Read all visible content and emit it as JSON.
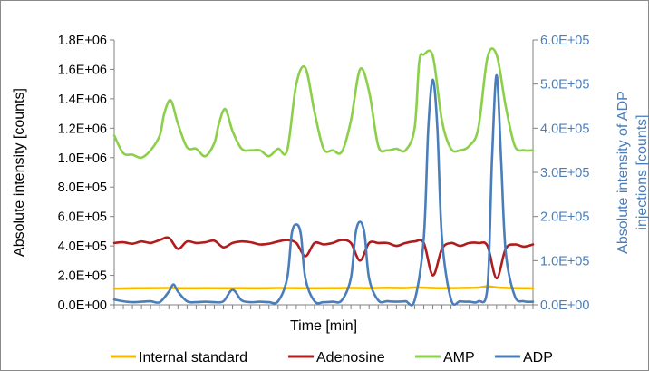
{
  "chart_data": {
    "type": "line",
    "xlabel": "Time [min]",
    "ylabel": "Absolute intensity [counts]",
    "y2label_line1": "Absolute intensity of ADP",
    "y2label_line2": "injections [counts]",
    "x_unit": "min",
    "xlim": [
      0,
      460
    ],
    "ylim": [
      0,
      1800000
    ],
    "y2lim": [
      0,
      600000
    ],
    "yticks": [
      "0.0E+00",
      "2.0E+05",
      "4.0E+05",
      "6.0E+05",
      "8.0E+05",
      "1.0E+06",
      "1.2E+06",
      "1.4E+06",
      "1.6E+06",
      "1.8E+06"
    ],
    "y2ticks": [
      "0.0E+00",
      "1.0E+05",
      "2.0E+05",
      "3.0E+05",
      "4.0E+05",
      "5.0E+05",
      "6.0E+05"
    ],
    "x_minor_tick_count": 46,
    "legend_position": "bottom",
    "grid": false,
    "colors": {
      "internal_standard": "#f5b800",
      "adenosine": "#b01c1c",
      "amp": "#8ccf4a",
      "adp": "#4a7ebb",
      "axis": "#808080",
      "y2text": "#4a7ebb"
    },
    "series": [
      {
        "name": "Internal standard",
        "axis": "left",
        "color": "#f5b800",
        "x": [
          0,
          20,
          40,
          60,
          80,
          100,
          120,
          140,
          160,
          180,
          200,
          220,
          240,
          260,
          280,
          300,
          320,
          330,
          340,
          360,
          380,
          400,
          410,
          420,
          440,
          460
        ],
        "values": [
          110000,
          112000,
          113000,
          114000,
          112000,
          113000,
          112000,
          113000,
          112000,
          114000,
          113000,
          112000,
          113000,
          114000,
          113000,
          115000,
          114000,
          118000,
          116000,
          113000,
          114000,
          117000,
          125000,
          118000,
          113000,
          112000
        ]
      },
      {
        "name": "Adenosine",
        "axis": "left",
        "color": "#b01c1c",
        "x": [
          0,
          10,
          20,
          30,
          40,
          50,
          60,
          70,
          80,
          90,
          100,
          110,
          120,
          130,
          140,
          150,
          160,
          170,
          180,
          190,
          200,
          210,
          220,
          230,
          240,
          250,
          260,
          270,
          280,
          290,
          300,
          310,
          320,
          330,
          340,
          350,
          360,
          370,
          380,
          390,
          400,
          410,
          420,
          430,
          440,
          450,
          460
        ],
        "values": [
          420000,
          425000,
          415000,
          430000,
          420000,
          440000,
          455000,
          380000,
          430000,
          420000,
          425000,
          435000,
          390000,
          420000,
          430000,
          425000,
          410000,
          415000,
          430000,
          440000,
          420000,
          330000,
          420000,
          410000,
          420000,
          440000,
          420000,
          300000,
          420000,
          420000,
          420000,
          400000,
          420000,
          430000,
          420000,
          200000,
          380000,
          420000,
          400000,
          420000,
          420000,
          400000,
          180000,
          380000,
          410000,
          395000,
          410000
        ]
      },
      {
        "name": "AMP",
        "axis": "left",
        "color": "#8ccf4a",
        "x": [
          0,
          10,
          20,
          30,
          40,
          50,
          55,
          62,
          70,
          80,
          90,
          100,
          110,
          115,
          122,
          130,
          140,
          150,
          160,
          170,
          180,
          190,
          200,
          210,
          220,
          230,
          240,
          250,
          260,
          270,
          280,
          290,
          300,
          310,
          320,
          330,
          335,
          340,
          350,
          360,
          370,
          380,
          390,
          400,
          410,
          420,
          430,
          440,
          450,
          460
        ],
        "values": [
          1150000,
          1030000,
          1020000,
          1000000,
          1050000,
          1150000,
          1300000,
          1390000,
          1230000,
          1070000,
          1060000,
          1010000,
          1100000,
          1230000,
          1330000,
          1180000,
          1060000,
          1050000,
          1050000,
          1010000,
          1060000,
          1050000,
          1500000,
          1610000,
          1310000,
          1060000,
          1050000,
          1040000,
          1250000,
          1600000,
          1450000,
          1080000,
          1050000,
          1060000,
          1050000,
          1200000,
          1650000,
          1700000,
          1690000,
          1250000,
          1060000,
          1050000,
          1080000,
          1200000,
          1680000,
          1700000,
          1350000,
          1080000,
          1050000,
          1050000
        ]
      },
      {
        "name": "ADP",
        "axis": "right",
        "color": "#4a7ebb",
        "x": [
          0,
          10,
          20,
          30,
          40,
          50,
          60,
          65,
          70,
          80,
          90,
          100,
          110,
          120,
          130,
          140,
          150,
          160,
          170,
          180,
          190,
          195,
          200,
          205,
          210,
          220,
          230,
          240,
          250,
          260,
          265,
          270,
          275,
          280,
          290,
          300,
          310,
          320,
          330,
          340,
          345,
          350,
          355,
          360,
          370,
          380,
          390,
          400,
          410,
          415,
          420,
          425,
          430,
          440,
          450,
          460
        ],
        "values": [
          12000,
          8000,
          6000,
          7000,
          8000,
          6000,
          30000,
          46000,
          30000,
          8000,
          6000,
          7000,
          6000,
          8000,
          34000,
          10000,
          6000,
          7000,
          6000,
          8000,
          60000,
          160000,
          182000,
          160000,
          60000,
          8000,
          6000,
          7000,
          10000,
          60000,
          160000,
          188000,
          160000,
          60000,
          10000,
          8000,
          7000,
          8000,
          10000,
          150000,
          400000,
          510000,
          400000,
          150000,
          12000,
          8000,
          7000,
          8000,
          40000,
          330000,
          520000,
          330000,
          120000,
          20000,
          8000,
          7000
        ]
      }
    ]
  }
}
